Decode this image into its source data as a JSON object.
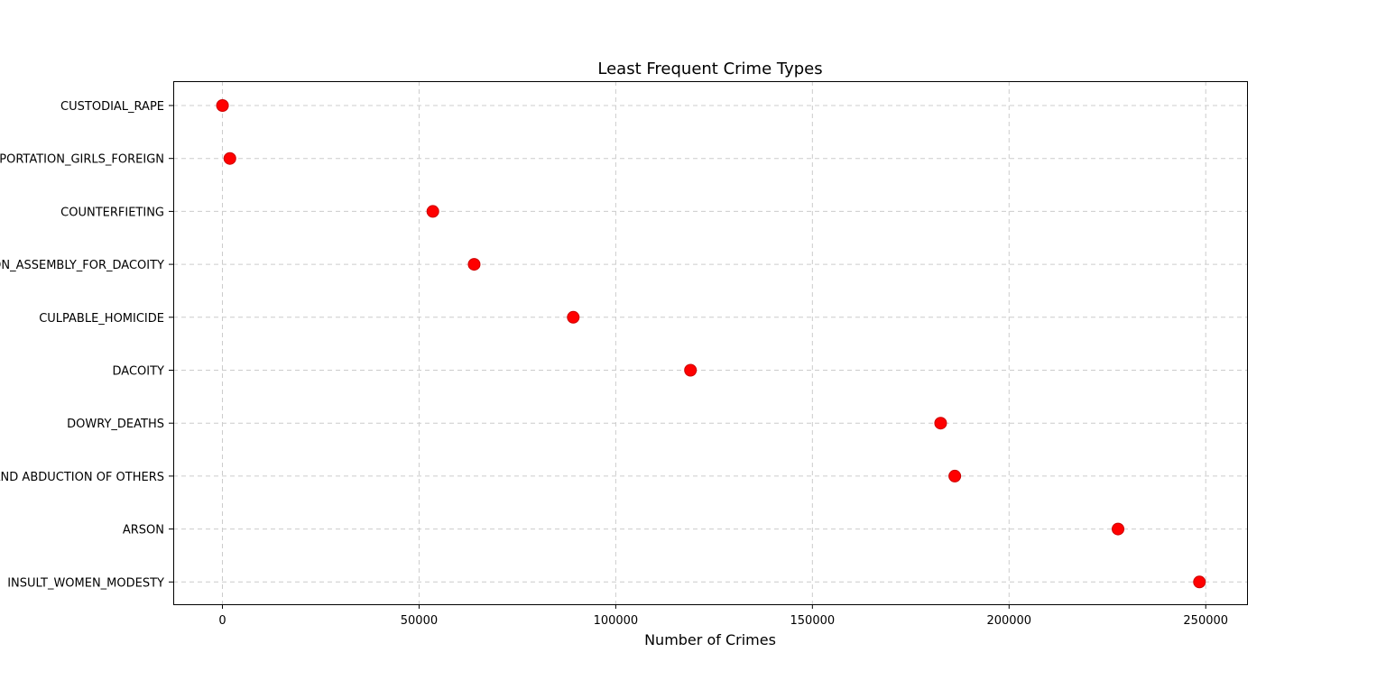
{
  "chart_data": {
    "type": "scatter",
    "title": "Least Frequent Crime Types",
    "xlabel": "Number of Crimes",
    "ylabel": "",
    "xlim": [
      -12500,
      260500
    ],
    "xticks": [
      0,
      50000,
      100000,
      150000,
      200000,
      250000
    ],
    "xtick_labels": [
      "0",
      "50000",
      "100000",
      "150000",
      "200000",
      "250000"
    ],
    "grid": true,
    "marker_color": "#ff0000",
    "categories": [
      "CUSTODIAL_RAPE",
      "IMPORTATION_GIRLS_FOREIGN",
      "COUNTERFIETING",
      "PREPARATION_ASSEMBLY_FOR_DACOITY",
      "CULPABLE_HOMICIDE",
      "DACOITY",
      "DOWRY_DEATHS",
      "KIDNAPPING AND ABDUCTION OF OTHERS",
      "ARSON",
      "INSULT_WOMEN_MODESTY"
    ],
    "values": [
      20,
      1900,
      53500,
      64000,
      89200,
      119000,
      182600,
      186200,
      227700,
      248400
    ]
  }
}
